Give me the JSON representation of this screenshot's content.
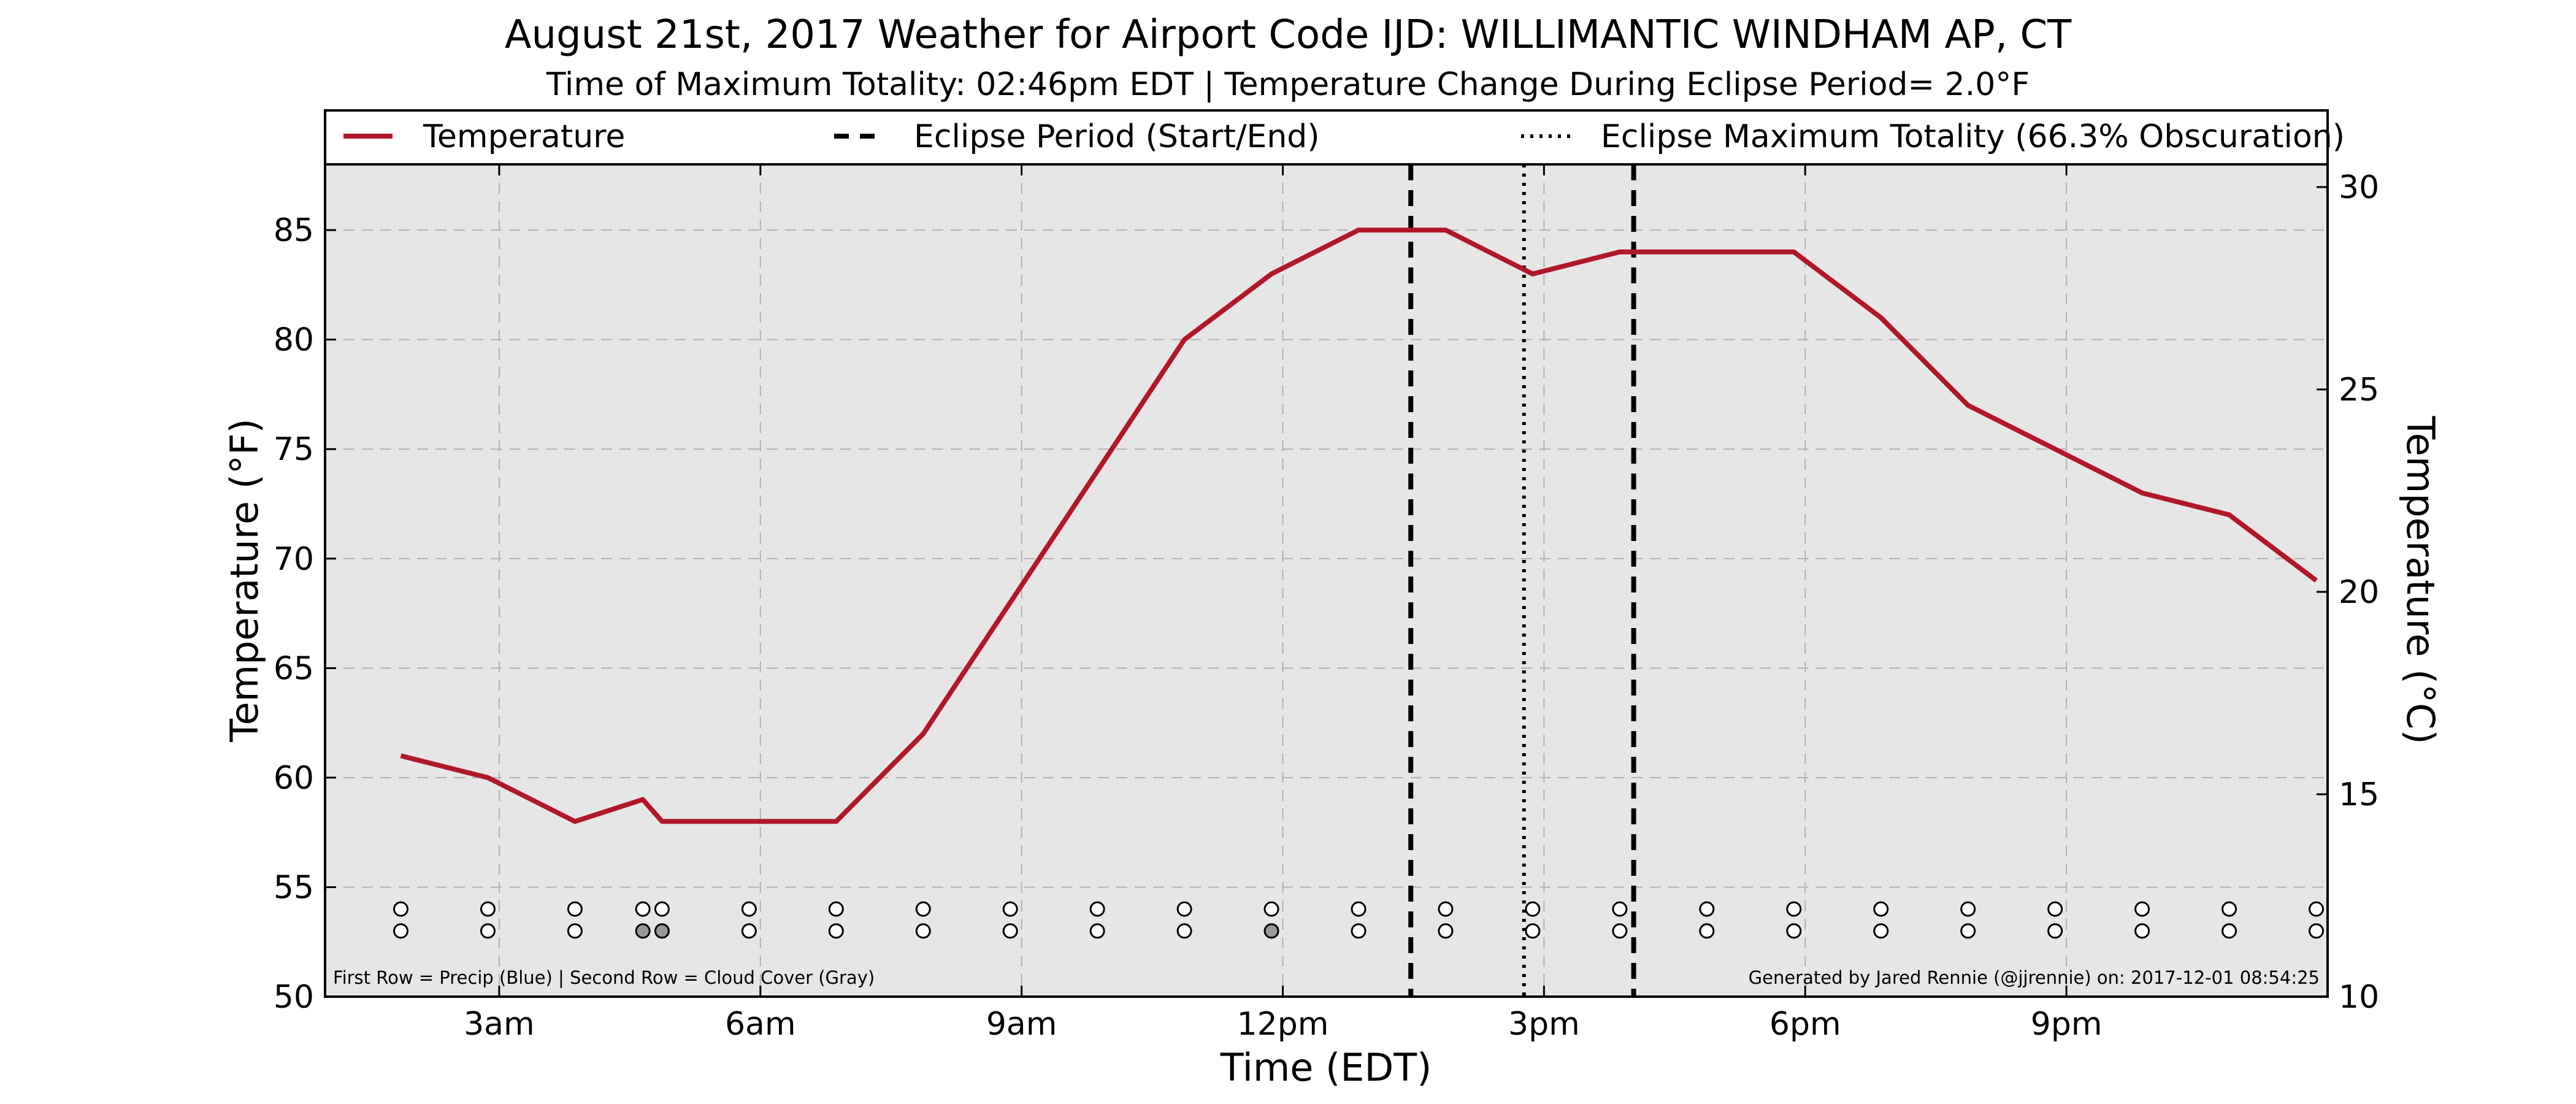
{
  "chart_data": {
    "type": "line",
    "title": "August 21st, 2017 Weather for Airport Code IJD: WILLIMANTIC WINDHAM AP, CT",
    "subtitle": "Time of Maximum Totality: 02:46pm EDT | Temperature Change During Eclipse Period= 2.0°F",
    "xlabel": "Time (EDT)",
    "ylabel": "Temperature (°F)",
    "ylabel_right": "Temperature (°C)",
    "xlim": [
      1.0,
      24.0
    ],
    "ylim": [
      50,
      88
    ],
    "ylim_right_c": [
      10,
      30.56
    ],
    "x_ticks": [
      {
        "value": 3,
        "label": "3am"
      },
      {
        "value": 6,
        "label": "6am"
      },
      {
        "value": 9,
        "label": "9am"
      },
      {
        "value": 12,
        "label": "12pm"
      },
      {
        "value": 15,
        "label": "3pm"
      },
      {
        "value": 18,
        "label": "6pm"
      },
      {
        "value": 21,
        "label": "9pm"
      }
    ],
    "y_ticks": [
      50,
      55,
      60,
      65,
      70,
      75,
      80,
      85
    ],
    "y_ticks_right": [
      10,
      15,
      20,
      25,
      30
    ],
    "grid": true,
    "legend_position": "top",
    "series": [
      {
        "name": "Temperature",
        "color": "#B0182A",
        "x": [
          1.87,
          2.87,
          3.87,
          4.65,
          4.87,
          5.87,
          6.87,
          7.87,
          8.87,
          9.87,
          10.87,
          11.87,
          12.87,
          13.45,
          13.87,
          14.87,
          15.87,
          16.87,
          17.87,
          18.87,
          19.87,
          20.87,
          21.87,
          22.87,
          23.87
        ],
        "values": [
          61,
          60,
          58,
          59,
          58,
          58,
          58,
          62,
          68,
          74,
          80,
          83,
          85,
          85,
          85,
          83,
          84,
          84,
          84,
          81,
          77,
          75,
          73,
          72,
          69
        ]
      }
    ],
    "eclipse": {
      "legend_label": "Eclipse Period (Start/End)",
      "start": 13.47,
      "end": 16.03,
      "max_label": "Eclipse Maximum Totality (66.3% Obscuration)",
      "max": 14.77
    },
    "observations": {
      "x": [
        1.87,
        2.87,
        3.87,
        4.65,
        4.87,
        5.87,
        6.87,
        7.87,
        8.87,
        9.87,
        10.87,
        11.87,
        12.87,
        13.87,
        14.87,
        15.87,
        16.87,
        17.87,
        18.87,
        19.87,
        20.87,
        21.87,
        22.87,
        23.87
      ],
      "precip_row_y": 54,
      "cloud_row_y": 53,
      "cloud_filled": [
        false,
        false,
        false,
        true,
        true,
        false,
        false,
        false,
        false,
        false,
        false,
        true,
        false,
        false,
        false,
        false,
        false,
        false,
        false,
        false,
        false,
        false,
        false,
        false
      ],
      "filled_color": "#999999"
    },
    "footnote_left": "First Row = Precip (Blue) | Second Row = Cloud Cover (Gray)",
    "footnote_right": "Generated by Jared Rennie (@jjrennie) on: 2017-12-01 08:54:25",
    "colors": {
      "plot_background": "#E6E6E6",
      "grid": "#B0B0B0"
    }
  }
}
